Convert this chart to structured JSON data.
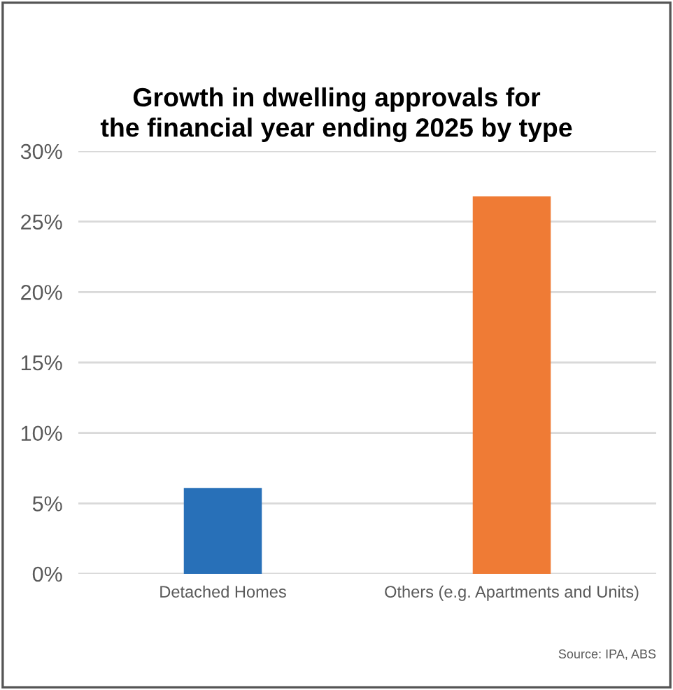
{
  "chart_data": {
    "type": "bar",
    "title": "Growth in dwelling approvals for\nthe financial year ending 2025 by type",
    "categories": [
      "Detached Homes",
      "Others (e.g. Apartments and Units)"
    ],
    "values": [
      6.1,
      26.8
    ],
    "colors": [
      "#2870b8",
      "#ef7b35"
    ],
    "ylim": [
      0,
      30
    ],
    "yticks": [
      {
        "value": 0,
        "label": "0%"
      },
      {
        "value": 5,
        "label": "5%"
      },
      {
        "value": 10,
        "label": "10%"
      },
      {
        "value": 15,
        "label": "15%"
      },
      {
        "value": 20,
        "label": "20%"
      },
      {
        "value": 25,
        "label": "25%"
      },
      {
        "value": 30,
        "label": "30%"
      }
    ],
    "grid": "y",
    "annotations": [
      "Source: IPA, ABS"
    ]
  }
}
